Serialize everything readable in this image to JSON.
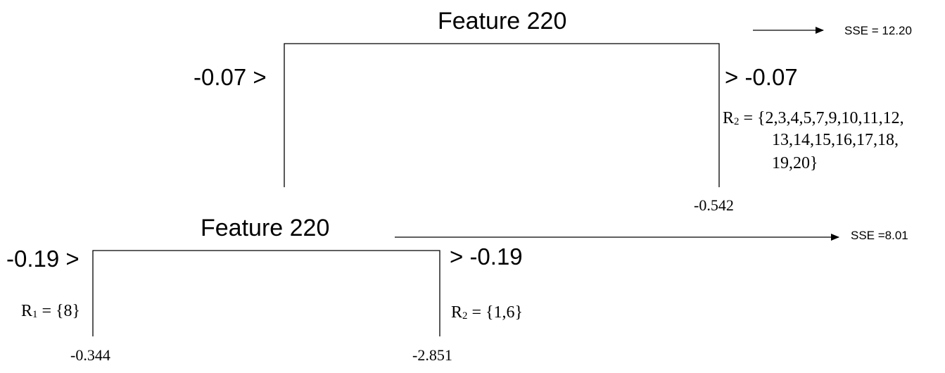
{
  "top_split": {
    "feature_title": "Feature 220",
    "left_threshold": "-0.07 >",
    "right_threshold": "> -0.07",
    "sse": "SSE = 12.20",
    "right_region": {
      "symbol": "R",
      "subscript": "2",
      "line1": " = {2,3,4,5,7,9,10,11,12,",
      "line2": "13,14,15,16,17,18,",
      "line3": "19,20}"
    },
    "right_leaf_value": "-0.542"
  },
  "bottom_split": {
    "feature_title": "Feature 220",
    "left_threshold": "-0.19 >",
    "right_threshold": "> -0.19",
    "sse": "SSE =8.01",
    "left_region": {
      "symbol": "R",
      "subscript": "1",
      "rest": " = {8}"
    },
    "right_region": {
      "symbol": "R",
      "subscript": "2",
      "rest": " = {1,6}"
    },
    "left_leaf_value": "-0.344",
    "right_leaf_value": "-2.851"
  }
}
